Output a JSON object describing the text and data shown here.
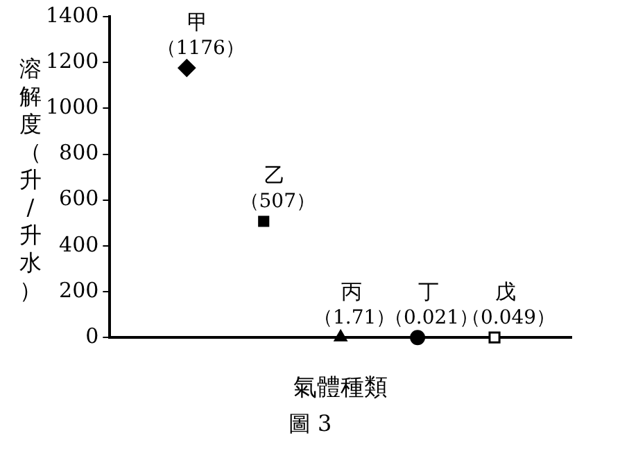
{
  "chart_data": {
    "type": "scatter",
    "title": "圖 3",
    "xlabel": "氣體種類",
    "ylabel": "溶解度（升/升水）",
    "categories": [
      null,
      null,
      null,
      null,
      null
    ],
    "series": [
      {
        "name": "甲",
        "color": "#000000",
        "marker": "diamond",
        "values": [
          1176,
          null,
          null,
          null,
          null
        ],
        "value_labels": [
          "（1176）",
          null,
          null,
          null,
          null
        ]
      },
      {
        "name": "乙",
        "color": "#000000",
        "marker": "square",
        "values": [
          null,
          507,
          null,
          null,
          null
        ],
        "value_labels": [
          null,
          "（507）",
          null,
          null,
          null
        ]
      },
      {
        "name": "丙",
        "color": "#000000",
        "marker": "triangle",
        "values": [
          null,
          null,
          1.71,
          null,
          null
        ],
        "value_labels": [
          null,
          null,
          "（1.71）",
          null,
          null
        ]
      },
      {
        "name": "丁",
        "color": "#000000",
        "marker": "circle",
        "values": [
          null,
          null,
          null,
          0.021,
          null
        ],
        "value_labels": [
          null,
          null,
          null,
          "（0.021）",
          null
        ]
      },
      {
        "name": "戊",
        "color": "#000000",
        "marker": "square",
        "values": [
          null,
          null,
          null,
          null,
          0.049
        ],
        "value_labels": [
          null,
          null,
          null,
          null,
          "（0.049）"
        ]
      }
    ],
    "ylim": [
      0,
      1400
    ],
    "yticks": [
      0,
      200,
      400,
      600,
      800,
      1000,
      1200,
      1400
    ],
    "grid": false,
    "legend": false
  }
}
